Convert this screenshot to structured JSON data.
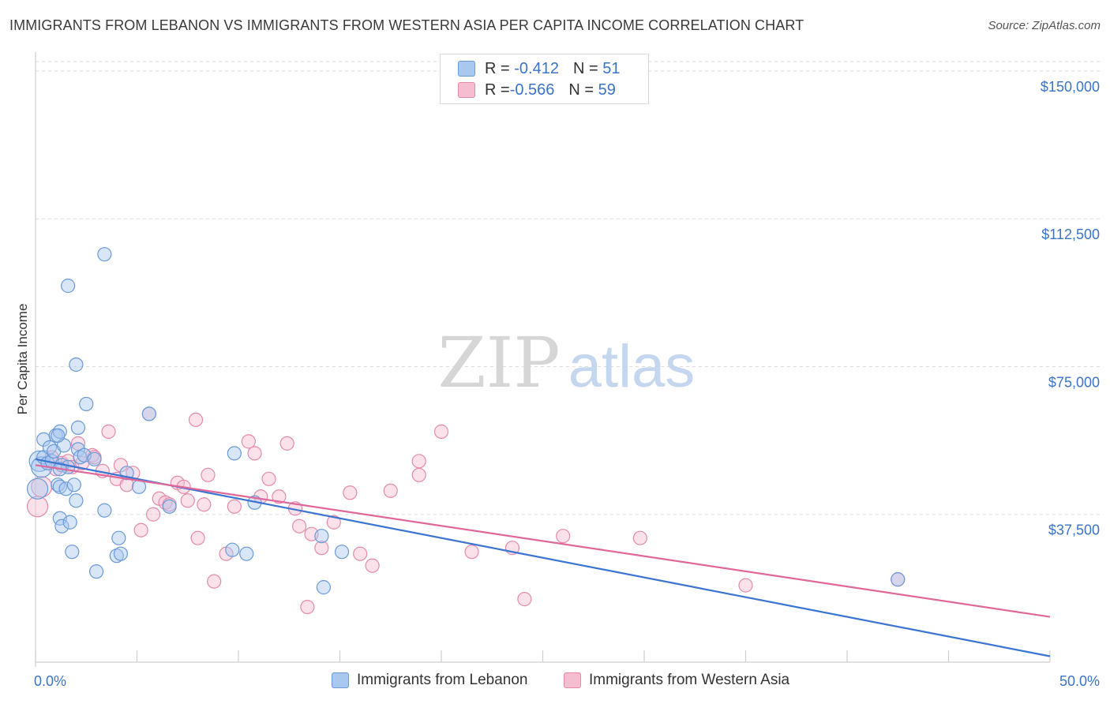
{
  "header": {
    "title": "IMMIGRANTS FROM LEBANON VS IMMIGRANTS FROM WESTERN ASIA PER CAPITA INCOME CORRELATION CHART",
    "source": "Source: ZipAtlas.com"
  },
  "watermark": {
    "zip": "ZIP",
    "atlas": "atlas"
  },
  "legend": {
    "rows": [
      {
        "r_label": "R = ",
        "r_value": "-0.412",
        "n_label": "N = ",
        "n_value": "51"
      },
      {
        "r_label": "R = ",
        "r_value": "-0.566",
        "n_label": "N = ",
        "n_value": "59"
      }
    ]
  },
  "colors": {
    "blue_fill": "#a9c8f0",
    "blue_stroke": "#6a9ad8",
    "blue_line": "#3a75d1",
    "pink_fill": "#f6bcd0",
    "pink_stroke": "#e58aab",
    "pink_line": "#e0679a",
    "tick_label": "#3b73c7",
    "grid": "#dddddd"
  },
  "chart_data": {
    "type": "scatter",
    "title": "IMMIGRANTS FROM LEBANON VS IMMIGRANTS FROM WESTERN ASIA PER CAPITA INCOME CORRELATION CHART",
    "xlabel": "",
    "ylabel": "Per Capita Income",
    "xlim": [
      0,
      50
    ],
    "ylim": [
      0,
      153000
    ],
    "x_tick_labels": [
      "0.0%",
      "50.0%"
    ],
    "y_ticks": [
      37500,
      75000,
      112500,
      150000
    ],
    "y_tick_labels": [
      "$37,500",
      "$75,000",
      "$112,500",
      "$150,000"
    ],
    "grid": true,
    "legend_position": "bottom",
    "series": [
      {
        "name": "Immigrants from Lebanon",
        "color": "blue",
        "r": -0.412,
        "n": 51,
        "trend": {
          "x": [
            0,
            50
          ],
          "y": [
            51500,
            1500
          ]
        },
        "points": [
          [
            0.1,
            44000
          ],
          [
            0.2,
            51000
          ],
          [
            0.3,
            49500
          ],
          [
            0.4,
            52000
          ],
          [
            0.4,
            56500
          ],
          [
            0.6,
            50500
          ],
          [
            0.7,
            54500
          ],
          [
            0.8,
            51000
          ],
          [
            0.9,
            53500
          ],
          [
            1.0,
            57500
          ],
          [
            1.1,
            45000
          ],
          [
            1.2,
            58500
          ],
          [
            1.3,
            50000
          ],
          [
            1.4,
            55000
          ],
          [
            1.1,
            57500
          ],
          [
            1.2,
            44500
          ],
          [
            1.5,
            44000
          ],
          [
            1.6,
            49500
          ],
          [
            1.2,
            49000
          ],
          [
            1.9,
            45000
          ],
          [
            2.0,
            41000
          ],
          [
            2.1,
            54000
          ],
          [
            2.1,
            59500
          ],
          [
            2.5,
            65500
          ],
          [
            1.2,
            36500
          ],
          [
            1.3,
            34500
          ],
          [
            1.7,
            35500
          ],
          [
            1.8,
            28000
          ],
          [
            2.0,
            75500
          ],
          [
            1.6,
            95500
          ],
          [
            2.2,
            52000
          ],
          [
            2.4,
            52500
          ],
          [
            2.9,
            51500
          ],
          [
            3.4,
            103500
          ],
          [
            3.4,
            38500
          ],
          [
            3.0,
            23000
          ],
          [
            4.0,
            27000
          ],
          [
            4.2,
            27500
          ],
          [
            4.1,
            31500
          ],
          [
            4.5,
            48000
          ],
          [
            5.1,
            44500
          ],
          [
            5.6,
            63000
          ],
          [
            6.6,
            39500
          ],
          [
            9.7,
            28500
          ],
          [
            9.8,
            53000
          ],
          [
            10.4,
            27500
          ],
          [
            10.8,
            40500
          ],
          [
            14.1,
            32000
          ],
          [
            14.2,
            19000
          ],
          [
            15.1,
            28000
          ],
          [
            42.5,
            21000
          ]
        ]
      },
      {
        "name": "Immigrants from Western Asia",
        "color": "pink",
        "r": -0.566,
        "n": 59,
        "trend": {
          "x": [
            0,
            50
          ],
          "y": [
            50000,
            11500
          ]
        },
        "points": [
          [
            0.1,
            39500
          ],
          [
            0.3,
            44500
          ],
          [
            0.8,
            52000
          ],
          [
            1.0,
            49000
          ],
          [
            1.3,
            50500
          ],
          [
            1.6,
            51000
          ],
          [
            1.8,
            49500
          ],
          [
            2.1,
            55500
          ],
          [
            2.3,
            50500
          ],
          [
            2.8,
            52500
          ],
          [
            2.9,
            52000
          ],
          [
            3.3,
            48500
          ],
          [
            3.6,
            58500
          ],
          [
            4.0,
            46500
          ],
          [
            4.2,
            50000
          ],
          [
            4.5,
            45000
          ],
          [
            4.8,
            48000
          ],
          [
            5.2,
            33500
          ],
          [
            5.6,
            63000
          ],
          [
            5.8,
            37500
          ],
          [
            6.1,
            41500
          ],
          [
            6.4,
            40500
          ],
          [
            6.6,
            40000
          ],
          [
            7.0,
            45500
          ],
          [
            7.3,
            44500
          ],
          [
            7.5,
            41000
          ],
          [
            7.9,
            61500
          ],
          [
            8.0,
            31500
          ],
          [
            8.3,
            40000
          ],
          [
            8.5,
            47500
          ],
          [
            8.8,
            20500
          ],
          [
            9.4,
            27500
          ],
          [
            9.8,
            39500
          ],
          [
            10.5,
            56000
          ],
          [
            10.8,
            53000
          ],
          [
            11.1,
            42000
          ],
          [
            11.5,
            46500
          ],
          [
            12.0,
            42000
          ],
          [
            12.4,
            55500
          ],
          [
            12.8,
            39000
          ],
          [
            13.0,
            34500
          ],
          [
            13.6,
            32500
          ],
          [
            14.1,
            29000
          ],
          [
            14.7,
            35500
          ],
          [
            13.4,
            14000
          ],
          [
            15.5,
            43000
          ],
          [
            16.0,
            27500
          ],
          [
            16.6,
            24500
          ],
          [
            17.5,
            43500
          ],
          [
            18.9,
            51000
          ],
          [
            18.9,
            47500
          ],
          [
            20.0,
            58500
          ],
          [
            21.5,
            28000
          ],
          [
            23.5,
            29000
          ],
          [
            24.1,
            16000
          ],
          [
            26.0,
            32000
          ],
          [
            29.8,
            31500
          ],
          [
            35.0,
            19500
          ],
          [
            42.5,
            21000
          ]
        ]
      }
    ]
  }
}
